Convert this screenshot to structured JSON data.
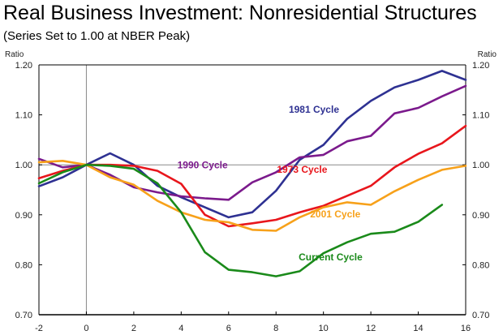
{
  "chart_data": {
    "type": "line",
    "title": "Real Business Investment: Nonresidential Structures",
    "subtitle": "(Series Set to 1.00 at NBER Peak)",
    "ylabel_left": "Ratio",
    "ylabel_right": "Ratio",
    "xlabel": "",
    "xlim": [
      -2,
      16
    ],
    "ylim": [
      0.7,
      1.2
    ],
    "x_ticks": [
      "-2",
      "0",
      "2",
      "4",
      "6",
      "8",
      "10",
      "12",
      "14",
      "16"
    ],
    "y_ticks": [
      "0.70",
      "0.80",
      "0.90",
      "1.00",
      "1.10",
      "1.20"
    ],
    "x_tick_values": [
      -2,
      0,
      2,
      4,
      6,
      8,
      10,
      12,
      14,
      16
    ],
    "y_tick_values": [
      0.7,
      0.8,
      0.9,
      1.0,
      1.1,
      1.2
    ],
    "reference_lines": {
      "x": 0,
      "y": 1.0
    },
    "grid": false,
    "series": [
      {
        "name": "1981 Cycle",
        "color": "#2e3192",
        "x": [
          -2,
          -1,
          0,
          1,
          2,
          3,
          4,
          5,
          6,
          7,
          8,
          9,
          10,
          11,
          12,
          13,
          14,
          15,
          16
        ],
        "values": [
          0.957,
          0.975,
          1.0,
          1.023,
          1.0,
          0.958,
          0.935,
          0.915,
          0.895,
          0.905,
          0.948,
          1.01,
          1.04,
          1.092,
          1.128,
          1.155,
          1.17,
          1.188,
          1.17
        ]
      },
      {
        "name": "1990 Cycle",
        "color": "#7b1a8c",
        "x": [
          -2,
          -1,
          0,
          1,
          2,
          3,
          4,
          5,
          6,
          7,
          8,
          9,
          10,
          11,
          12,
          13,
          14,
          15,
          16
        ],
        "values": [
          1.012,
          0.995,
          1.0,
          0.98,
          0.955,
          0.945,
          0.937,
          0.933,
          0.93,
          0.965,
          0.985,
          1.015,
          1.02,
          1.047,
          1.058,
          1.103,
          1.114,
          1.137,
          1.158
        ]
      },
      {
        "name": "1973 Cycle",
        "color": "#e8161c",
        "x": [
          -2,
          -1,
          0,
          1,
          2,
          3,
          4,
          5,
          6,
          7,
          8,
          9,
          10,
          11,
          12,
          13,
          14,
          15,
          16
        ],
        "values": [
          0.973,
          0.988,
          1.0,
          1.0,
          0.998,
          0.988,
          0.962,
          0.9,
          0.877,
          0.883,
          0.89,
          0.905,
          0.918,
          0.938,
          0.958,
          0.995,
          1.022,
          1.043,
          1.078
        ]
      },
      {
        "name": "2001 Cycle",
        "color": "#f7a11a",
        "x": [
          -2,
          -1,
          0,
          1,
          2,
          3,
          4,
          5,
          6,
          7,
          8,
          9,
          10,
          11,
          12,
          13,
          14,
          15,
          16
        ],
        "values": [
          1.005,
          1.008,
          1.0,
          0.975,
          0.96,
          0.928,
          0.905,
          0.89,
          0.885,
          0.87,
          0.868,
          0.895,
          0.915,
          0.925,
          0.92,
          0.947,
          0.97,
          0.99,
          0.998
        ]
      },
      {
        "name": "Current Cycle",
        "color": "#1a8a1a",
        "x": [
          -2,
          -1,
          0,
          1,
          2,
          3,
          4,
          5,
          6,
          7,
          8,
          9,
          10,
          11,
          12,
          13,
          14,
          15
        ],
        "values": [
          0.963,
          0.985,
          1.0,
          0.998,
          0.992,
          0.963,
          0.905,
          0.825,
          0.79,
          0.785,
          0.777,
          0.787,
          0.823,
          0.845,
          0.862,
          0.866,
          0.886,
          0.92
        ]
      }
    ],
    "annotations": [
      {
        "text": "1981 Cycle",
        "series": "1981 Cycle",
        "x": 9.6,
        "y": 1.104
      },
      {
        "text": "1990 Cycle",
        "series": "1990 Cycle",
        "x": 4.9,
        "y": 0.993
      },
      {
        "text": "1973 Cycle",
        "series": "1973 Cycle",
        "x": 9.1,
        "y": 0.984
      },
      {
        "text": "2001 Cycle",
        "series": "2001 Cycle",
        "x": 10.5,
        "y": 0.895
      },
      {
        "text": "Current Cycle",
        "series": "Current Cycle",
        "x": 10.3,
        "y": 0.809
      }
    ]
  }
}
